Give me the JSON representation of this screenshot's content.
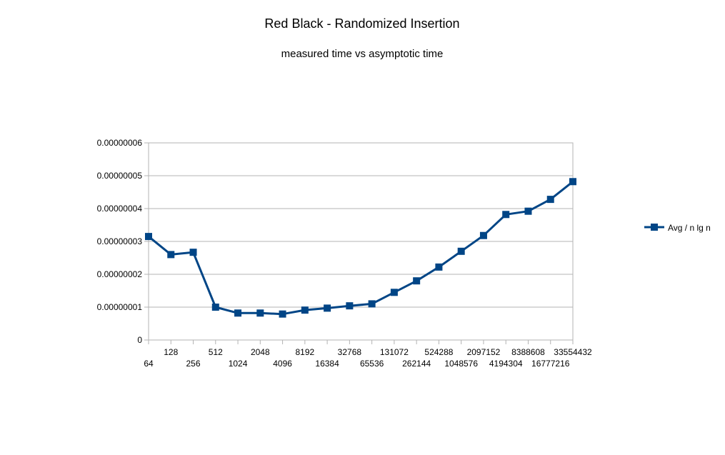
{
  "chart_data": {
    "type": "line",
    "title": "Red Black - Randomized Insertion",
    "subtitle": "measured time vs asymptotic time",
    "xlabel": "",
    "ylabel": "",
    "categories": [
      "64",
      "128",
      "256",
      "512",
      "1024",
      "2048",
      "4096",
      "8192",
      "16384",
      "32768",
      "65536",
      "131072",
      "262144",
      "524288",
      "1048576",
      "2097152",
      "4194304",
      "8388608",
      "16777216",
      "33554432"
    ],
    "y_ticks": [
      "0",
      "0.00000001",
      "0.00000002",
      "0.00000003",
      "0.00000004",
      "0.00000005",
      "0.00000006"
    ],
    "ylim": [
      0,
      6e-08
    ],
    "grid": true,
    "legend_position": "right",
    "series": [
      {
        "name": "Avg / n lg n",
        "color": "#004586",
        "marker": "square",
        "values": [
          3.15e-08,
          2.6e-08,
          2.67e-08,
          1e-08,
          8.2e-09,
          8.2e-09,
          7.9e-09,
          9.1e-09,
          9.7e-09,
          1.04e-08,
          1.1e-08,
          1.45e-08,
          1.8e-08,
          2.22e-08,
          2.7e-08,
          3.18e-08,
          3.82e-08,
          3.92e-08,
          4.28e-08,
          4.82e-08
        ]
      }
    ]
  }
}
